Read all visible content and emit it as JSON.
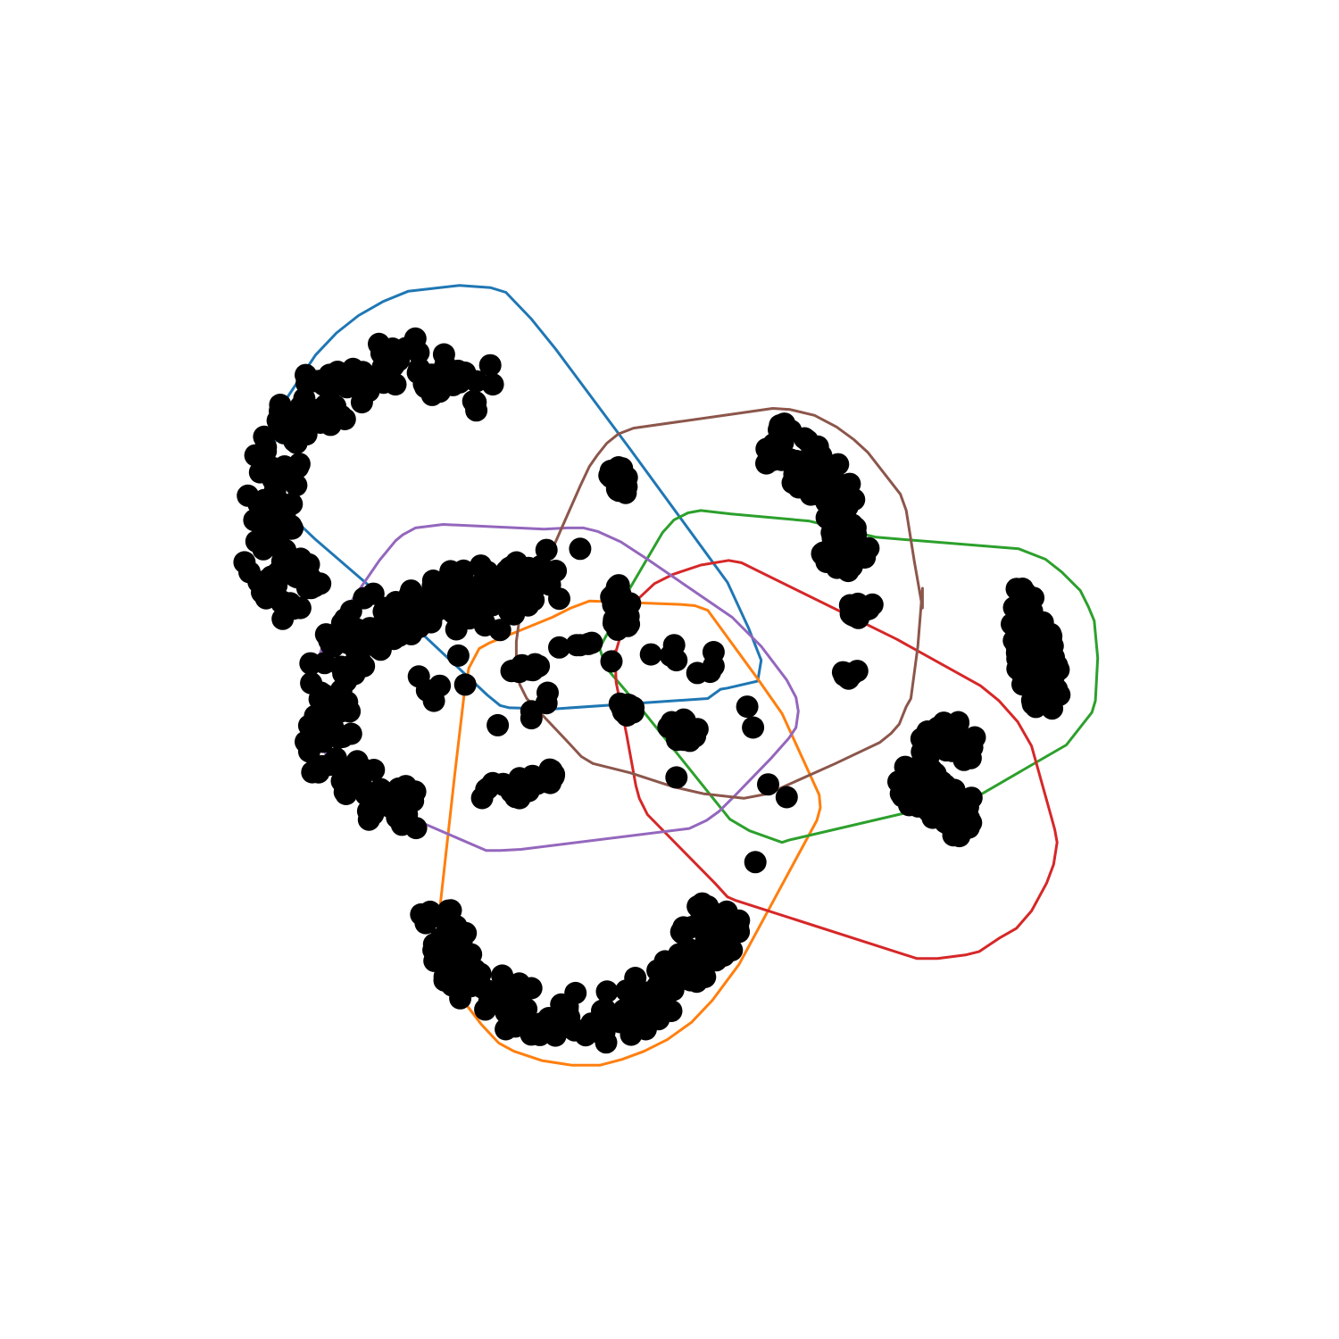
{
  "chart_data": {
    "type": "scatter",
    "title": "",
    "xlabel": "",
    "ylabel": "",
    "axes_visible": false,
    "grid": false,
    "legend": "none",
    "marker_color": "#000000",
    "xlim": [
      0,
      100
    ],
    "ylim": [
      0,
      100
    ],
    "series": [
      {
        "color": "#1f77b4",
        "outline": [
          [
            16.0,
            69.6
          ],
          [
            17.1,
            73.5
          ],
          [
            19.5,
            77.1
          ],
          [
            21.3,
            79.0
          ],
          [
            23.2,
            80.5
          ],
          [
            25.3,
            81.7
          ],
          [
            27.5,
            82.6
          ],
          [
            31.9,
            83.1
          ],
          [
            34.6,
            82.9
          ],
          [
            35.9,
            82.5
          ],
          [
            38.1,
            80.2
          ],
          [
            40.2,
            77.6
          ],
          [
            46.6,
            69.0
          ],
          [
            55.0,
            57.5
          ],
          [
            56.8,
            53.6
          ],
          [
            57.9,
            50.8
          ],
          [
            57.6,
            49.0
          ],
          [
            55.0,
            48.4
          ],
          [
            54.4,
            48.3
          ],
          [
            53.3,
            47.5
          ],
          [
            40.0,
            46.6
          ],
          [
            36.2,
            46.7
          ],
          [
            35.4,
            46.9
          ],
          [
            34.3,
            47.8
          ],
          [
            26.0,
            55.6
          ],
          [
            19.5,
            61.2
          ],
          [
            17.5,
            63.1
          ],
          [
            16.4,
            65.8
          ],
          [
            15.7,
            69.6
          ]
        ]
      },
      {
        "color": "#ff7f0e",
        "outline": [
          [
            30.3,
            29.3
          ],
          [
            30.6,
            25.1
          ],
          [
            31.6,
            22.8
          ],
          [
            32.5,
            21.1
          ],
          [
            33.8,
            19.4
          ],
          [
            35.3,
            17.8
          ],
          [
            36.6,
            17.1
          ],
          [
            39.0,
            16.3
          ],
          [
            41.6,
            15.9
          ],
          [
            44.0,
            15.9
          ],
          [
            45.9,
            16.4
          ],
          [
            47.8,
            17.1
          ],
          [
            49.8,
            18.1
          ],
          [
            51.9,
            19.6
          ],
          [
            53.7,
            21.5
          ],
          [
            56.0,
            24.6
          ],
          [
            62.7,
            37.0
          ],
          [
            63.0,
            38.1
          ],
          [
            62.9,
            39.2
          ],
          [
            59.7,
            46.2
          ],
          [
            57.6,
            49.2
          ],
          [
            53.3,
            55.1
          ],
          [
            52.2,
            55.5
          ],
          [
            51.1,
            55.6
          ],
          [
            43.1,
            55.9
          ],
          [
            41.5,
            55.3
          ],
          [
            39.9,
            54.5
          ],
          [
            34.5,
            52.3
          ],
          [
            33.6,
            51.8
          ],
          [
            32.7,
            50.1
          ],
          [
            32.3,
            47.8
          ],
          [
            31.5,
            41.0
          ],
          [
            30.2,
            29.3
          ]
        ]
      },
      {
        "color": "#2ca02c",
        "outline": [
          [
            44.1,
            52.1
          ],
          [
            44.6,
            53.0
          ],
          [
            46.0,
            56.0
          ],
          [
            49.4,
            61.8
          ],
          [
            50.4,
            62.9
          ],
          [
            51.6,
            63.5
          ],
          [
            52.7,
            63.7
          ],
          [
            55.3,
            63.4
          ],
          [
            62.0,
            62.8
          ],
          [
            67.8,
            61.4
          ],
          [
            80.1,
            60.4
          ],
          [
            82.4,
            59.5
          ],
          [
            83.8,
            58.4
          ],
          [
            85.4,
            56.8
          ],
          [
            86.1,
            55.4
          ],
          [
            86.6,
            54.2
          ],
          [
            86.9,
            51.0
          ],
          [
            86.7,
            47.3
          ],
          [
            86.4,
            46.3
          ],
          [
            84.2,
            43.5
          ],
          [
            81.6,
            42.0
          ],
          [
            76.6,
            39.1
          ],
          [
            60.3,
            35.3
          ],
          [
            59.7,
            35.1
          ],
          [
            56.9,
            36.1
          ],
          [
            55.2,
            37.1
          ],
          [
            47.9,
            46.2
          ],
          [
            44.5,
            50.2
          ],
          [
            43.9,
            52.1
          ]
        ]
      },
      {
        "color": "#d62728",
        "outline": [
          [
            45.4,
            51.6
          ],
          [
            46.1,
            54.0
          ],
          [
            47.1,
            55.9
          ],
          [
            48.7,
            57.4
          ],
          [
            50.3,
            58.2
          ],
          [
            52.7,
            59.0
          ],
          [
            55.1,
            59.4
          ],
          [
            56.2,
            59.2
          ],
          [
            69.6,
            52.6
          ],
          [
            76.8,
            48.6
          ],
          [
            78.4,
            47.3
          ],
          [
            80.0,
            45.5
          ],
          [
            81.2,
            43.4
          ],
          [
            82.9,
            37.3
          ],
          [
            83.2,
            36.2
          ],
          [
            83.4,
            35.1
          ],
          [
            83.1,
            33.2
          ],
          [
            82.5,
            31.6
          ],
          [
            81.2,
            29.2
          ],
          [
            79.9,
            27.7
          ],
          [
            78.5,
            26.9
          ],
          [
            76.7,
            25.7
          ],
          [
            75.5,
            25.4
          ],
          [
            73.1,
            25.1
          ],
          [
            71.3,
            25.1
          ],
          [
            55.7,
            30.1
          ],
          [
            55.0,
            30.4
          ],
          [
            53.9,
            31.6
          ],
          [
            48.1,
            37.5
          ],
          [
            47.4,
            38.9
          ],
          [
            47.1,
            40.0
          ],
          [
            46.3,
            44.4
          ],
          [
            45.4,
            48.9
          ],
          [
            45.3,
            51.6
          ]
        ]
      },
      {
        "color": "#9467bd",
        "outline": [
          [
            19.1,
            48.5
          ],
          [
            19.3,
            45.8
          ],
          [
            20.2,
            43.0
          ],
          [
            21.4,
            41.4
          ],
          [
            25.2,
            38.3
          ],
          [
            34.2,
            34.4
          ],
          [
            35.4,
            34.4
          ],
          [
            37.2,
            34.5
          ],
          [
            51.7,
            36.3
          ],
          [
            53.2,
            37.0
          ],
          [
            54.3,
            37.8
          ],
          [
            55.7,
            39.2
          ],
          [
            58.8,
            42.4
          ],
          [
            60.3,
            44.1
          ],
          [
            60.9,
            45.0
          ],
          [
            61.1,
            46.4
          ],
          [
            60.9,
            47.6
          ],
          [
            60.1,
            49.1
          ],
          [
            57.9,
            52.0
          ],
          [
            55.4,
            54.5
          ],
          [
            48.1,
            59.5
          ],
          [
            45.8,
            61.0
          ],
          [
            43.8,
            61.9
          ],
          [
            42.6,
            62.2
          ],
          [
            41.2,
            62.2
          ],
          [
            39.2,
            62.1
          ],
          [
            30.5,
            62.5
          ],
          [
            28.1,
            62.2
          ],
          [
            27.0,
            61.6
          ],
          [
            26.4,
            61.1
          ],
          [
            25.0,
            59.4
          ],
          [
            22.6,
            55.9
          ],
          [
            20.1,
            52.0
          ],
          [
            19.4,
            49.9
          ],
          [
            19.1,
            48.5
          ]
        ]
      },
      {
        "color": "#8c564b",
        "outline": [
          [
            36.8,
            52.4
          ],
          [
            37.1,
            54.6
          ],
          [
            38.2,
            56.5
          ],
          [
            42.3,
            65.8
          ],
          [
            43.1,
            67.5
          ],
          [
            43.8,
            68.5
          ],
          [
            44.6,
            69.5
          ],
          [
            45.6,
            70.3
          ],
          [
            46.9,
            70.8
          ],
          [
            55.4,
            72.0
          ],
          [
            58.9,
            72.5
          ],
          [
            60.4,
            72.4
          ],
          [
            62.5,
            71.9
          ],
          [
            64.4,
            70.9
          ],
          [
            65.9,
            69.8
          ],
          [
            67.1,
            68.7
          ],
          [
            69.9,
            65.1
          ],
          [
            70.4,
            63.7
          ],
          [
            71.1,
            59.3
          ],
          [
            71.8,
            55.3
          ],
          [
            71.8,
            57.0
          ],
          [
            71.4,
            52.0
          ],
          [
            70.8,
            47.5
          ],
          [
            70.4,
            46.8
          ],
          [
            69.8,
            45.3
          ],
          [
            69.1,
            44.5
          ],
          [
            68.1,
            43.7
          ],
          [
            64.3,
            41.9
          ],
          [
            58.5,
            39.3
          ],
          [
            56.4,
            38.9
          ],
          [
            52.9,
            39.3
          ],
          [
            50.3,
            39.9
          ],
          [
            46.6,
            41.1
          ],
          [
            43.4,
            41.9
          ],
          [
            42.4,
            42.5
          ],
          [
            41.2,
            43.8
          ],
          [
            37.7,
            47.5
          ],
          [
            37.1,
            48.7
          ],
          [
            36.8,
            50.1
          ],
          [
            36.8,
            52.4
          ]
        ]
      }
    ],
    "clusters": [
      {
        "shape": "arc",
        "cx": 28.0,
        "cy": 63.5,
        "r": 12.5,
        "a0": 55,
        "a1": 220,
        "width": 5.5,
        "n": 150
      },
      {
        "shape": "arc",
        "cx": 28.5,
        "cy": 46.5,
        "r": 8.5,
        "a0": 90,
        "a1": 270,
        "width": 5.0,
        "n": 130
      },
      {
        "shape": "blob",
        "cx": 33.5,
        "cy": 56.5,
        "rx": 6.0,
        "ry": 2.8,
        "rot": 15,
        "n": 80
      },
      {
        "shape": "arc",
        "cx": 56.0,
        "cy": 61.0,
        "r": 9.0,
        "a0": -15,
        "a1": 75,
        "width": 4.5,
        "n": 110
      },
      {
        "shape": "arc",
        "cx": 42.0,
        "cy": 33.0,
        "r": 13.0,
        "a0": 195,
        "a1": 345,
        "width": 5.0,
        "n": 170
      },
      {
        "shape": "blob",
        "cx": 81.3,
        "cy": 51.3,
        "rx": 2.0,
        "ry": 6.0,
        "rot": 12,
        "n": 80
      },
      {
        "shape": "arc",
        "cx": 68.0,
        "cy": 31.0,
        "r": 9.5,
        "a0": 30,
        "a1": 80,
        "width": 3.8,
        "n": 80
      },
      {
        "shape": "blob",
        "cx": 74.1,
        "cy": 43.6,
        "rx": 2.5,
        "ry": 2.0,
        "rot": 0,
        "n": 30
      },
      {
        "shape": "blob",
        "cx": 45.5,
        "cy": 66.5,
        "rx": 1.0,
        "ry": 2.0,
        "rot": 0,
        "n": 15
      },
      {
        "shape": "blob",
        "cx": 37.0,
        "cy": 40.0,
        "rx": 3.5,
        "ry": 1.1,
        "rot": 18,
        "n": 25
      },
      {
        "shape": "blob",
        "cx": 45.8,
        "cy": 55.3,
        "rx": 1.1,
        "ry": 2.0,
        "rot": 0,
        "n": 20
      },
      {
        "shape": "blob",
        "cx": 51.3,
        "cy": 44.8,
        "rx": 1.6,
        "ry": 1.0,
        "rot": 0,
        "n": 12
      },
      {
        "shape": "blob",
        "cx": 37.6,
        "cy": 50.0,
        "rx": 1.6,
        "ry": 0.7,
        "rot": 8,
        "n": 12
      },
      {
        "shape": "blob",
        "cx": 66.3,
        "cy": 55.3,
        "rx": 1.3,
        "ry": 0.8,
        "rot": 30,
        "n": 10
      },
      {
        "shape": "blob",
        "cx": 65.5,
        "cy": 49.6,
        "rx": 0.8,
        "ry": 0.7,
        "rot": 0,
        "n": 8
      },
      {
        "shape": "blob",
        "cx": 46.2,
        "cy": 46.7,
        "rx": 0.8,
        "ry": 0.8,
        "rot": 0,
        "n": 10
      }
    ],
    "points": [
      [
        42.3,
        60.4
      ],
      [
        39.4,
        60.3
      ],
      [
        45.0,
        50.7
      ],
      [
        43.0,
        52.2
      ],
      [
        42.0,
        52.1
      ],
      [
        40.5,
        51.9
      ],
      [
        50.4,
        52.1
      ],
      [
        48.4,
        51.3
      ],
      [
        50.1,
        51.2
      ],
      [
        53.8,
        51.5
      ],
      [
        53.8,
        50.3
      ],
      [
        52.4,
        49.7
      ],
      [
        50.6,
        50.8
      ],
      [
        53.5,
        49.8
      ],
      [
        56.7,
        46.8
      ],
      [
        57.2,
        45.0
      ],
      [
        50.6,
        40.7
      ],
      [
        58.5,
        40.1
      ],
      [
        60.1,
        39.0
      ],
      [
        57.4,
        33.4
      ],
      [
        35.2,
        45.2
      ],
      [
        38.1,
        46.4
      ],
      [
        38.1,
        45.8
      ],
      [
        39.4,
        47.1
      ],
      [
        39.5,
        48.0
      ],
      [
        42.3,
        52.1
      ],
      [
        43.3,
        52.3
      ],
      [
        31.8,
        51.2
      ],
      [
        32.4,
        48.7
      ],
      [
        30.2,
        48.6
      ],
      [
        29.7,
        47.3
      ],
      [
        28.4,
        49.4
      ],
      [
        29.1,
        48.2
      ],
      [
        34.1,
        53.8
      ],
      [
        35.4,
        53.4
      ],
      [
        36.2,
        55.0
      ],
      [
        36.2,
        56.6
      ],
      [
        38.9,
        58.9
      ],
      [
        40.2,
        58.5
      ],
      [
        40.5,
        56.1
      ],
      [
        39.7,
        57.3
      ]
    ]
  }
}
